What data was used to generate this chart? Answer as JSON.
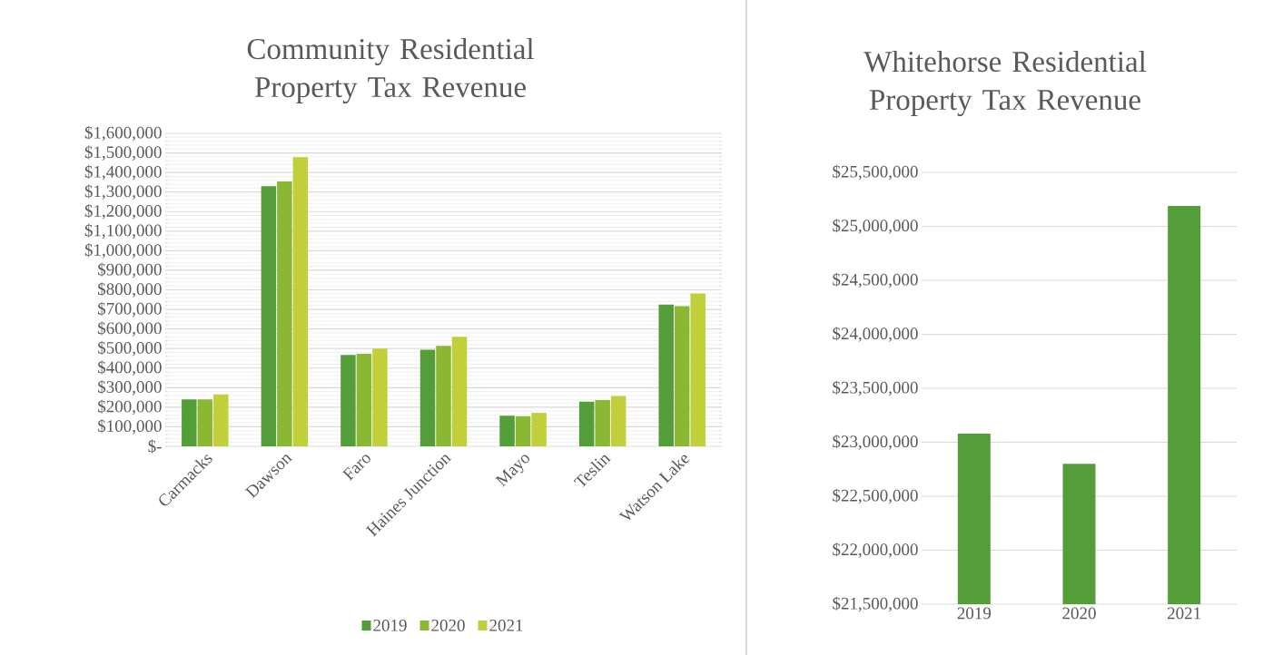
{
  "chart_data": [
    {
      "type": "bar",
      "title": "Community Residential Property Tax Revenue",
      "categories": [
        "Carmacks",
        "Dawson",
        "Faro",
        "Haines Junction",
        "Mayo",
        "Teslin",
        "Watson Lake"
      ],
      "series": [
        {
          "name": "2019",
          "color": "#549e39",
          "values": [
            240000,
            1330000,
            467000,
            494000,
            157000,
            228000,
            725000
          ]
        },
        {
          "name": "2020",
          "color": "#8ab833",
          "values": [
            240000,
            1355000,
            473000,
            513000,
            154000,
            236000,
            716000
          ]
        },
        {
          "name": "2021",
          "color": "#c0cf3a",
          "values": [
            265000,
            1478000,
            500000,
            560000,
            171000,
            257000,
            781000
          ]
        }
      ],
      "ylim": [
        0,
        1600000
      ],
      "yticks": [
        {
          "value": 0,
          "label": "$-"
        },
        {
          "value": 100000,
          "label": "$100,000"
        },
        {
          "value": 200000,
          "label": "$200,000"
        },
        {
          "value": 300000,
          "label": "$300,000"
        },
        {
          "value": 400000,
          "label": "$400,000"
        },
        {
          "value": 500000,
          "label": "$500,000"
        },
        {
          "value": 600000,
          "label": "$600,000"
        },
        {
          "value": 700000,
          "label": "$700,000"
        },
        {
          "value": 800000,
          "label": "$800,000"
        },
        {
          "value": 900000,
          "label": "$900,000"
        },
        {
          "value": 1000000,
          "label": "$1,000,000"
        },
        {
          "value": 1100000,
          "label": "$1,100,000"
        },
        {
          "value": 1200000,
          "label": "$1,200,000"
        },
        {
          "value": 1300000,
          "label": "$1,300,000"
        },
        {
          "value": 1400000,
          "label": "$1,400,000"
        },
        {
          "value": 1500000,
          "label": "$1,500,000"
        },
        {
          "value": 1600000,
          "label": "$1,600,000"
        }
      ],
      "grid": "y",
      "legend": "bottom"
    },
    {
      "type": "bar",
      "title": "Whitehorse Residential Property Tax Revenue",
      "categories": [
        "2019",
        "2020",
        "2021"
      ],
      "values": [
        23080000,
        22800000,
        25190000
      ],
      "color": "#549e39",
      "ylim": [
        21500000,
        25500000
      ],
      "yticks": [
        {
          "value": 21500000,
          "label": "$21,500,000"
        },
        {
          "value": 22000000,
          "label": "$22,000,000"
        },
        {
          "value": 22500000,
          "label": "$22,500,000"
        },
        {
          "value": 23000000,
          "label": "$23,000,000"
        },
        {
          "value": 23500000,
          "label": "$23,500,000"
        },
        {
          "value": 24000000,
          "label": "$24,000,000"
        },
        {
          "value": 24500000,
          "label": "$24,500,000"
        },
        {
          "value": 25000000,
          "label": "$25,000,000"
        },
        {
          "value": 25500000,
          "label": "$25,500,000"
        }
      ],
      "grid": "y"
    }
  ]
}
